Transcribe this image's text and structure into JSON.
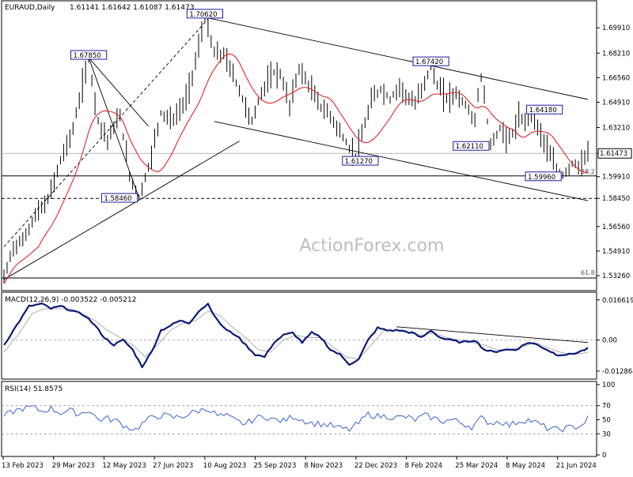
{
  "header": {
    "symbol": "EURAUD,Daily",
    "ohlc": "1.61141 1.61642 1.61087 1.61473"
  },
  "watermark": "ActionForex.com",
  "colors": {
    "price": "#000000",
    "sma": "#e0252b",
    "macd": "#0b1a7a",
    "signal": "#b0b0b0",
    "rsi": "#3a63d6",
    "channel": "#000000",
    "label_border": "#1a1aa0",
    "grid": "#c8c8c8"
  },
  "chart_data": [
    {
      "type": "line",
      "panel": "price",
      "ylim": [
        1.5236,
        1.7146
      ],
      "x_dates": [
        "13 Feb 2023",
        "29 Mar 2023",
        "12 May 2023",
        "27 Jun 2023",
        "10 Aug 2023",
        "25 Sep 2023",
        "8 Nov 2023",
        "22 Dec 2023",
        "8 Feb 2024",
        "25 Mar 2024",
        "8 May 2024",
        "21 Jun 2024"
      ],
      "y_ticks": [
        "1.69910",
        "1.68210",
        "1.66560",
        "1.64910",
        "1.63210",
        "1.61473",
        "1.59910",
        "1.58450",
        "1.56560",
        "1.54910",
        "1.53260"
      ],
      "current_price": 1.61473,
      "current_price_label": "1.61473",
      "hline_solid": 1.5996,
      "hline_dashed": 1.5845,
      "hline_bottom": 1.531,
      "fib_labels": [
        "38.2",
        "61.8"
      ],
      "annotations": [
        {
          "label": "1.70620",
          "price": 1.7062,
          "i": 64
        },
        {
          "label": "1.67850",
          "price": 1.6785,
          "i": 27
        },
        {
          "label": "1.67420",
          "price": 1.6742,
          "i": 136
        },
        {
          "label": "1.64180",
          "price": 1.6418,
          "i": 168
        },
        {
          "label": "1.62110",
          "price": 1.6211,
          "i": 155
        },
        {
          "label": "1.61270",
          "price": 1.6127,
          "i": 112
        },
        {
          "label": "1.59960",
          "price": 1.5996,
          "i": 178
        },
        {
          "label": "1.58460",
          "price": 1.5846,
          "i": 43
        }
      ],
      "anchors": [
        [
          0,
          1.531
        ],
        [
          3,
          1.552
        ],
        [
          6,
          1.556
        ],
        [
          10,
          1.573
        ],
        [
          14,
          1.583
        ],
        [
          18,
          1.61
        ],
        [
          22,
          1.631
        ],
        [
          25,
          1.66
        ],
        [
          27,
          1.678
        ],
        [
          30,
          1.637
        ],
        [
          33,
          1.624
        ],
        [
          37,
          1.64
        ],
        [
          40,
          1.6
        ],
        [
          43,
          1.585
        ],
        [
          46,
          1.605
        ],
        [
          50,
          1.642
        ],
        [
          54,
          1.637
        ],
        [
          58,
          1.651
        ],
        [
          61,
          1.676
        ],
        [
          64,
          1.706
        ],
        [
          67,
          1.682
        ],
        [
          70,
          1.681
        ],
        [
          73,
          1.668
        ],
        [
          77,
          1.646
        ],
        [
          79,
          1.636
        ],
        [
          82,
          1.656
        ],
        [
          86,
          1.669
        ],
        [
          88,
          1.668
        ],
        [
          91,
          1.647
        ],
        [
          94,
          1.672
        ],
        [
          98,
          1.657
        ],
        [
          101,
          1.646
        ],
        [
          104,
          1.64
        ],
        [
          107,
          1.629
        ],
        [
          110,
          1.618
        ],
        [
          112,
          1.613
        ],
        [
          114,
          1.626
        ],
        [
          117,
          1.65
        ],
        [
          120,
          1.658
        ],
        [
          123,
          1.651
        ],
        [
          126,
          1.66
        ],
        [
          129,
          1.651
        ],
        [
          131,
          1.648
        ],
        [
          134,
          1.663
        ],
        [
          136,
          1.674
        ],
        [
          138,
          1.66
        ],
        [
          141,
          1.652
        ],
        [
          144,
          1.655
        ],
        [
          147,
          1.647
        ],
        [
          150,
          1.637
        ],
        [
          152,
          1.667
        ],
        [
          155,
          1.621
        ],
        [
          158,
          1.631
        ],
        [
          161,
          1.624
        ],
        [
          164,
          1.638
        ],
        [
          166,
          1.636
        ],
        [
          168,
          1.642
        ],
        [
          171,
          1.628
        ],
        [
          174,
          1.613
        ],
        [
          176,
          1.603
        ],
        [
          178,
          1.6
        ],
        [
          181,
          1.608
        ],
        [
          184,
          1.606
        ],
        [
          186,
          1.615
        ]
      ]
    },
    {
      "type": "line",
      "panel": "macd",
      "title": "MACD(12,26,9) -0.003522 -0.005212",
      "ylim": [
        -0.0155,
        0.0185
      ],
      "y_ticks": [
        "0.016619",
        "0.00",
        "-0.012864"
      ],
      "zero": 0.0,
      "anchors": [
        [
          0,
          -0.002
        ],
        [
          4,
          0.006
        ],
        [
          8,
          0.014
        ],
        [
          12,
          0.015
        ],
        [
          15,
          0.013
        ],
        [
          18,
          0.014
        ],
        [
          22,
          0.012
        ],
        [
          26,
          0.01
        ],
        [
          29,
          0.006
        ],
        [
          32,
          0.001
        ],
        [
          35,
          -0.002
        ],
        [
          38,
          0.0
        ],
        [
          41,
          -0.004
        ],
        [
          44,
          -0.011
        ],
        [
          47,
          -0.005
        ],
        [
          50,
          0.004
        ],
        [
          53,
          0.006
        ],
        [
          56,
          0.008
        ],
        [
          59,
          0.007
        ],
        [
          62,
          0.012
        ],
        [
          65,
          0.015
        ],
        [
          68,
          0.008
        ],
        [
          71,
          0.004
        ],
        [
          74,
          0.002
        ],
        [
          77,
          -0.002
        ],
        [
          80,
          -0.006
        ],
        [
          83,
          -0.007
        ],
        [
          86,
          -0.001
        ],
        [
          89,
          0.002
        ],
        [
          92,
          0.003
        ],
        [
          95,
          -0.001
        ],
        [
          98,
          0.003
        ],
        [
          101,
          0.001
        ],
        [
          104,
          -0.004
        ],
        [
          107,
          -0.006
        ],
        [
          110,
          -0.01
        ],
        [
          113,
          -0.008
        ],
        [
          116,
          0.0
        ],
        [
          119,
          0.005
        ],
        [
          122,
          0.004
        ],
        [
          126,
          0.004
        ],
        [
          130,
          0.003
        ],
        [
          133,
          0.001
        ],
        [
          136,
          0.004
        ],
        [
          139,
          0.001
        ],
        [
          142,
          0.0
        ],
        [
          146,
          -0.001
        ],
        [
          150,
          0.0
        ],
        [
          153,
          -0.004
        ],
        [
          156,
          -0.005
        ],
        [
          159,
          -0.004
        ],
        [
          163,
          -0.004
        ],
        [
          167,
          -0.001
        ],
        [
          170,
          -0.002
        ],
        [
          173,
          -0.004
        ],
        [
          176,
          -0.006
        ],
        [
          180,
          -0.006
        ],
        [
          183,
          -0.005
        ],
        [
          186,
          -0.0035
        ]
      ],
      "signal_anchors": [
        [
          0,
          -0.005
        ],
        [
          5,
          0.003
        ],
        [
          9,
          0.011
        ],
        [
          13,
          0.013
        ],
        [
          17,
          0.013
        ],
        [
          21,
          0.013
        ],
        [
          25,
          0.011
        ],
        [
          29,
          0.008
        ],
        [
          33,
          0.004
        ],
        [
          37,
          0.001
        ],
        [
          41,
          -0.002
        ],
        [
          45,
          -0.007
        ],
        [
          49,
          -0.002
        ],
        [
          53,
          0.004
        ],
        [
          57,
          0.007
        ],
        [
          61,
          0.008
        ],
        [
          65,
          0.012
        ],
        [
          69,
          0.01
        ],
        [
          73,
          0.005
        ],
        [
          77,
          0.001
        ],
        [
          81,
          -0.004
        ],
        [
          85,
          -0.005
        ],
        [
          89,
          0.0
        ],
        [
          93,
          0.002
        ],
        [
          97,
          0.001
        ],
        [
          101,
          0.001
        ],
        [
          105,
          -0.003
        ],
        [
          109,
          -0.007
        ],
        [
          113,
          -0.008
        ],
        [
          117,
          -0.002
        ],
        [
          121,
          0.004
        ],
        [
          125,
          0.004
        ],
        [
          129,
          0.003
        ],
        [
          133,
          0.002
        ],
        [
          137,
          0.003
        ],
        [
          141,
          0.001
        ],
        [
          145,
          0.0
        ],
        [
          149,
          -0.001
        ],
        [
          153,
          -0.002
        ],
        [
          157,
          -0.004
        ],
        [
          161,
          -0.004
        ],
        [
          165,
          -0.003
        ],
        [
          169,
          -0.001
        ],
        [
          173,
          -0.003
        ],
        [
          177,
          -0.005
        ],
        [
          181,
          -0.006
        ],
        [
          186,
          -0.0052
        ]
      ]
    },
    {
      "type": "line",
      "panel": "rsi",
      "title": "RSI(14) 51.8575",
      "ylim": [
        0,
        100
      ],
      "y_ticks": [
        "100",
        "70",
        "50",
        "30",
        "0"
      ],
      "levels": [
        70,
        30
      ],
      "anchors": [
        [
          0,
          55
        ],
        [
          3,
          62
        ],
        [
          6,
          66
        ],
        [
          9,
          68
        ],
        [
          12,
          62
        ],
        [
          15,
          66
        ],
        [
          18,
          60
        ],
        [
          21,
          63
        ],
        [
          24,
          58
        ],
        [
          27,
          64
        ],
        [
          30,
          50
        ],
        [
          33,
          52
        ],
        [
          36,
          48
        ],
        [
          39,
          40
        ],
        [
          42,
          36
        ],
        [
          45,
          48
        ],
        [
          48,
          55
        ],
        [
          51,
          56
        ],
        [
          54,
          53
        ],
        [
          57,
          55
        ],
        [
          60,
          60
        ],
        [
          63,
          64
        ],
        [
          65,
          66
        ],
        [
          68,
          56
        ],
        [
          71,
          55
        ],
        [
          74,
          48
        ],
        [
          77,
          44
        ],
        [
          80,
          52
        ],
        [
          83,
          55
        ],
        [
          86,
          50
        ],
        [
          89,
          48
        ],
        [
          92,
          55
        ],
        [
          95,
          50
        ],
        [
          98,
          45
        ],
        [
          101,
          44
        ],
        [
          104,
          42
        ],
        [
          107,
          38
        ],
        [
          110,
          36
        ],
        [
          113,
          45
        ],
        [
          116,
          58
        ],
        [
          119,
          55
        ],
        [
          122,
          55
        ],
        [
          125,
          53
        ],
        [
          128,
          54
        ],
        [
          131,
          50
        ],
        [
          134,
          56
        ],
        [
          137,
          52
        ],
        [
          140,
          48
        ],
        [
          143,
          50
        ],
        [
          146,
          45
        ],
        [
          149,
          40
        ],
        [
          152,
          52
        ],
        [
          155,
          45
        ],
        [
          158,
          48
        ],
        [
          161,
          42
        ],
        [
          164,
          48
        ],
        [
          167,
          50
        ],
        [
          170,
          45
        ],
        [
          173,
          38
        ],
        [
          176,
          36
        ],
        [
          179,
          38
        ],
        [
          182,
          40
        ],
        [
          184,
          42
        ],
        [
          186,
          52
        ]
      ]
    }
  ]
}
